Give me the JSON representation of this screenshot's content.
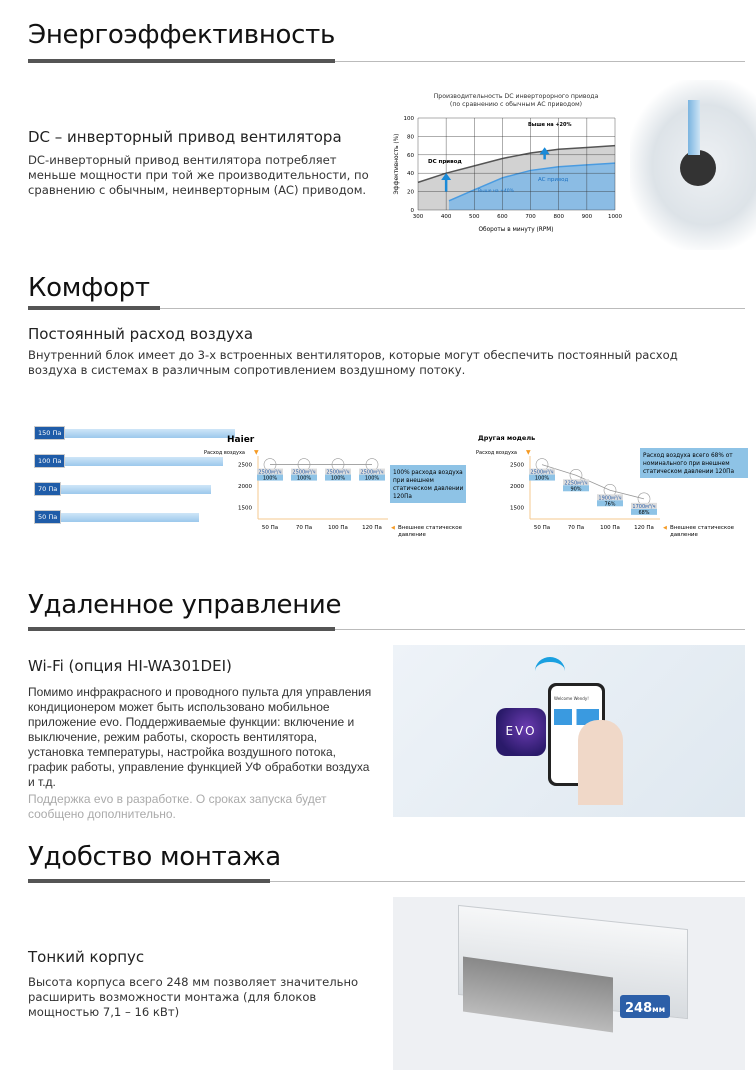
{
  "energy": {
    "title": "Энергоэффективность",
    "subtitle": "DC – инверторный привод вентилятора",
    "body": "DC-инверторный привод вентилятора потребляет меньше мощности при той же производительности, по сравнению с обычным, неинверторным (AC) приводом."
  },
  "chart_data": [
    {
      "type": "area",
      "title": "Производительность DC инверторорного привода",
      "subtitle": "(по сравнению с обычным AC приводом)",
      "xlabel": "Обороты в минуту (RPM)",
      "ylabel": "Эффективность (%)",
      "xlim": [
        300,
        1000
      ],
      "ylim": [
        0,
        100
      ],
      "xticks": [
        300,
        400,
        500,
        600,
        700,
        800,
        900,
        1000
      ],
      "yticks": [
        0,
        20,
        40,
        60,
        80,
        100
      ],
      "grid": true,
      "series": [
        {
          "name": "DC привод",
          "color": "#555555",
          "x": [
            300,
            400,
            500,
            600,
            700,
            800,
            900,
            1000
          ],
          "y": [
            30,
            40,
            48,
            56,
            62,
            66,
            68,
            70
          ]
        },
        {
          "name": "AC привод",
          "color": "#4a9be0",
          "x": [
            410,
            500,
            600,
            700,
            800,
            900,
            1000
          ],
          "y": [
            10,
            22,
            35,
            43,
            47,
            49,
            51
          ]
        }
      ],
      "annotations": [
        "Выше на +40%",
        "Выше на +20%"
      ]
    },
    {
      "type": "line",
      "title": "Haier",
      "ylabel": "Расход воздуха",
      "xlabel": "Внешнее статическое давление",
      "categories": [
        "50 Па",
        "70 Па",
        "100 Па",
        "120 Па"
      ],
      "yticks": [
        1500,
        2000,
        2500
      ],
      "ylim": [
        1300,
        2700
      ],
      "values": [
        2500,
        2500,
        2500,
        2500
      ],
      "unit": "м³/ч",
      "percent": [
        "100%",
        "100%",
        "100%",
        "100%"
      ],
      "note": "100% расхода воздуха при внешнем статическом давлении 120Па"
    },
    {
      "type": "line",
      "title": "Другая модель",
      "ylabel": "Расход воздуха",
      "xlabel": "Внешнее статическое давление",
      "categories": [
        "50 Па",
        "70 Па",
        "100 Па",
        "120 Па"
      ],
      "yticks": [
        1500,
        2000,
        2500
      ],
      "ylim": [
        1300,
        2700
      ],
      "values": [
        2500,
        2250,
        1900,
        1700
      ],
      "unit": "м³/ч",
      "percent": [
        "100%",
        "90%",
        "76%",
        "68%"
      ],
      "note": "Расход воздуха всего 68% от номинального при внешнем статическом давлении 120Па"
    }
  ],
  "comfort": {
    "title": "Комфорт",
    "subtitle": "Постоянный расход воздуха",
    "body": "Внутренний блок имеет до 3-х встроенных вентиляторов, которые могут обеспечить постоянный расход воздуха в системах в различным сопротивлением воздушному потоку.",
    "ducts": [
      "150 Па",
      "100 Па",
      "70 Па",
      "50 Па"
    ]
  },
  "remote": {
    "title": "Удаленное управление",
    "subtitle": "Wi-Fi (опция HI-WA301DEI)",
    "body": "Помимо инфракрасного и проводного пульта для управления кондиционером может быть использовано мобильное приложение evo. Поддерживаемые функции: включение и выключение, режим работы, скорость вентилятора, установка температуры, настройка воздушного потока, график работы, управление функцией УФ обработки воздуха и т.д.",
    "note": "Поддержка evo в разработке. О сроках запуска будет сообщено дополнительно.",
    "app_logo": "EVO",
    "phone_greeting": "Welcome Wendy!"
  },
  "install": {
    "title": "Удобство монтажа",
    "subtitle": "Тонкий корпус",
    "body": "Высота корпуса всего 248 мм позволяет значительно расширить возможности монтажа (для блоков мощностью 7,1 – 16 кВт)",
    "dim_value": "248",
    "dim_unit": "мм"
  }
}
